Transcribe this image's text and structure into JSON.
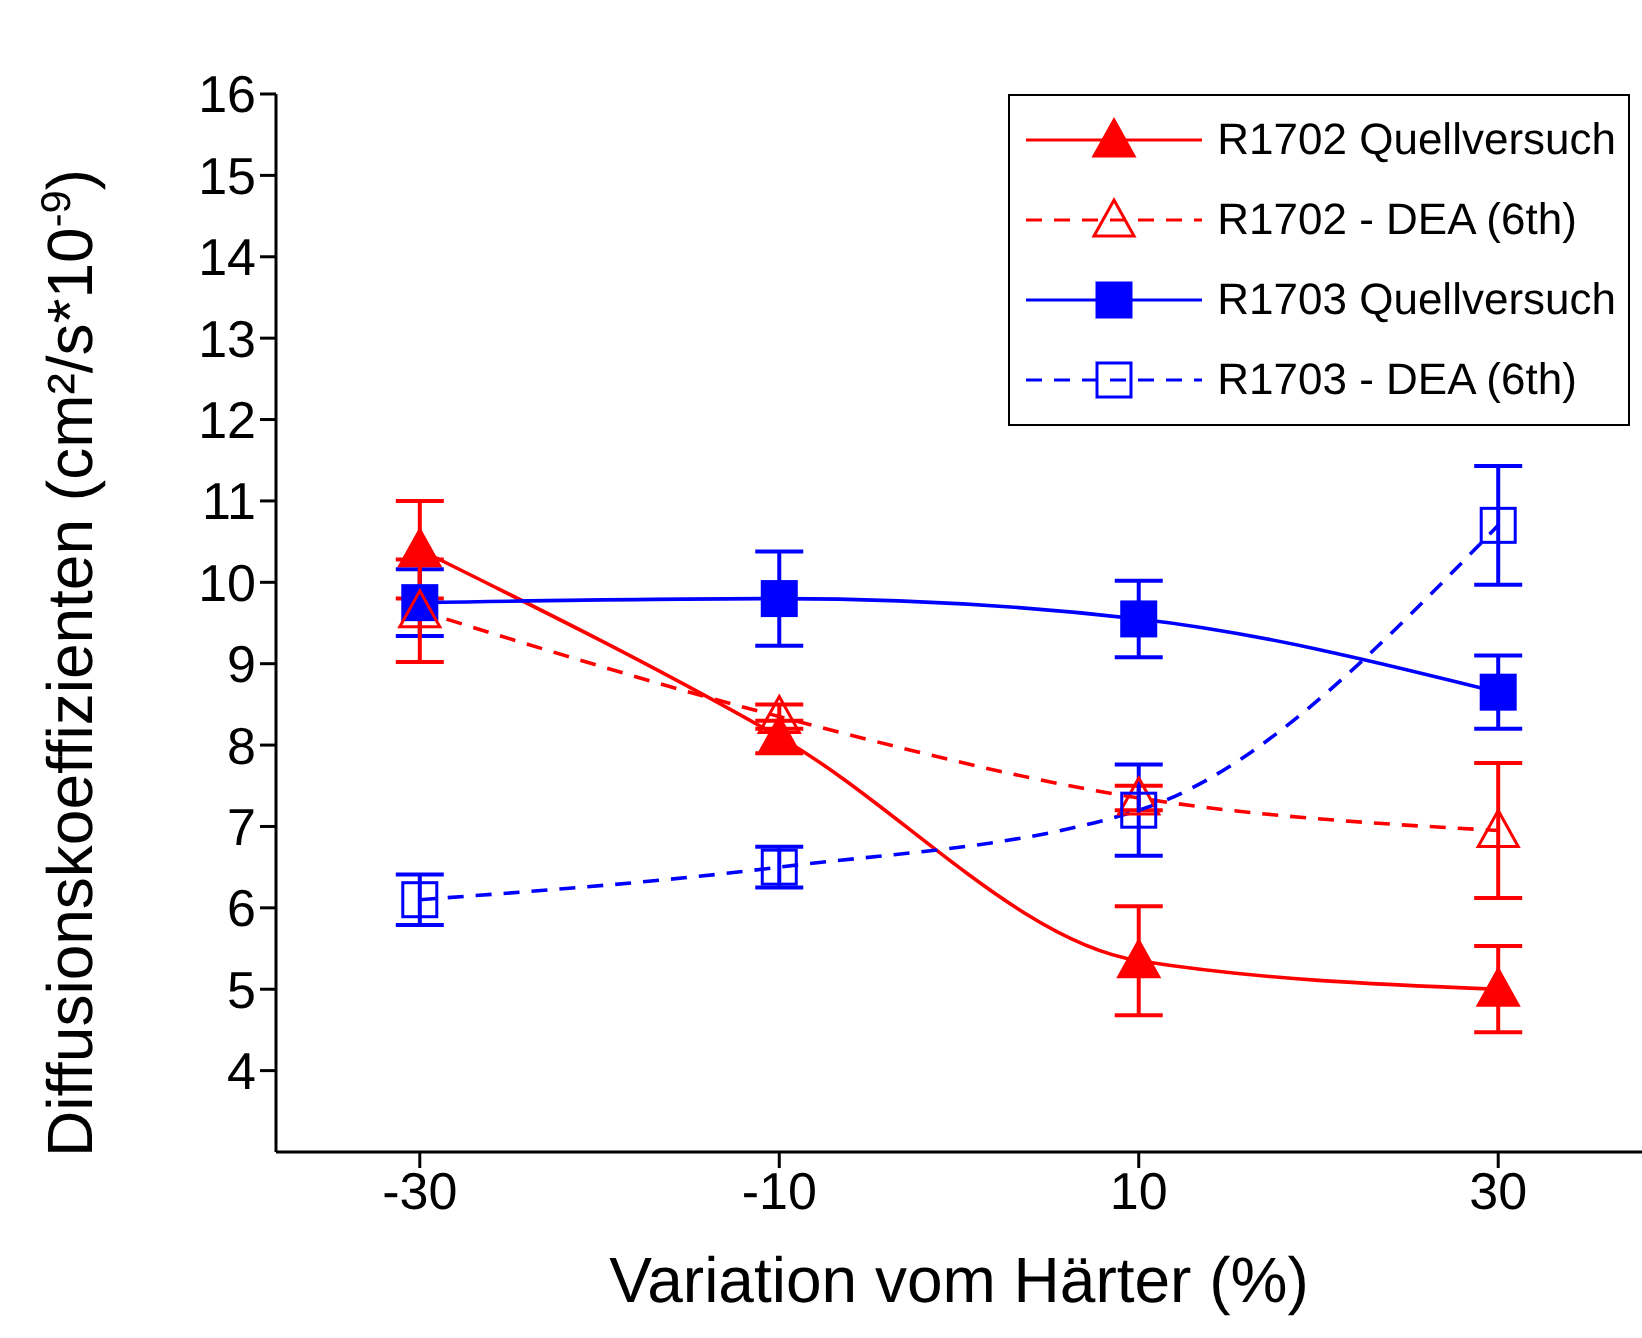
{
  "chart_data": {
    "type": "line",
    "xlabel": "Variation vom Härter (%)",
    "ylabel": "Diffusionskoeffizienten (cm²/s*10$^{-9}$)",
    "x": [
      -30,
      -10,
      10,
      30
    ],
    "xlim": [
      -38,
      38
    ],
    "xticks": [
      -30,
      -10,
      10,
      30
    ],
    "ylim": [
      3,
      16
    ],
    "yticks": [
      4,
      5,
      6,
      7,
      8,
      9,
      10,
      11,
      12,
      13,
      14,
      15,
      16
    ],
    "legend": "top right",
    "grid": false,
    "series": [
      {
        "name": "R1702 Quellversuch",
        "color": "#ff0000",
        "marker": "triangle",
        "line_style": "solid",
        "values": [
          10.4,
          8.1,
          5.35,
          5.0
        ],
        "errors": [
          0.6,
          0.2,
          0.67,
          0.53
        ]
      },
      {
        "name": "R1702 - DEA (6th)",
        "color": "#ff0000",
        "marker": "triangle",
        "line_style": "dashed",
        "values": [
          9.65,
          8.35,
          7.35,
          6.95
        ],
        "errors": [
          0.63,
          0.15,
          0.15,
          0.83
        ]
      },
      {
        "name": "R1703 Quellversuch",
        "color": "#0000ff",
        "marker": "square",
        "line_style": "solid",
        "values": [
          9.75,
          9.8,
          9.55,
          8.65
        ],
        "errors": [
          0.41,
          0.58,
          0.47,
          0.45
        ]
      },
      {
        "name": "R1703 - DEA (6th)",
        "color": "#0000ff",
        "marker": "square",
        "line_style": "dashed",
        "values": [
          6.1,
          6.5,
          7.2,
          10.7
        ],
        "errors": [
          0.31,
          0.25,
          0.56,
          0.73
        ]
      }
    ]
  }
}
